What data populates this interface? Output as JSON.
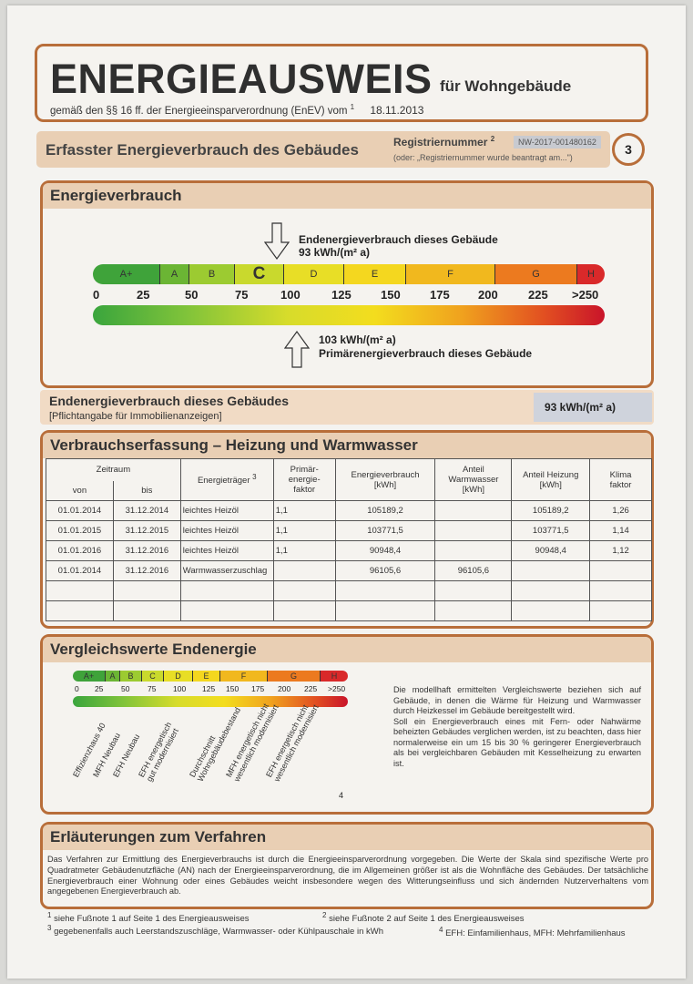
{
  "header": {
    "title": "ENERGIEAUSWEIS",
    "subtitle": "für Wohngebäude",
    "enev_text": "gemäß den §§ 16 ff. der Energieeinsparverordnung (EnEV) vom",
    "enev_sup": "1",
    "date": "18.11.2013"
  },
  "registration": {
    "section_label": "Erfasster Energieverbrauch des Gebäudes",
    "regnr_label": "Registriernummer",
    "regnr_sup": "2",
    "regnr_value": "NW-2017-001480162",
    "regnr_note": "(oder: „Registriernummer wurde beantragt am...\")",
    "page_number": "3"
  },
  "energieverbrauch": {
    "title": "Energieverbrauch",
    "end_label_1": "Endenergieverbrauch dieses Gebäude",
    "end_value": "93 kWh/(m² a)",
    "prim_value": "103 kWh/(m² a)",
    "prim_label": "Primärenergieverbrauch dieses Gebäude",
    "classes": [
      {
        "label": "A+",
        "color": "#3fa33a"
      },
      {
        "label": "A",
        "color": "#6bb534"
      },
      {
        "label": "B",
        "color": "#9ccb31"
      },
      {
        "label": "C",
        "color": "#c9d92d"
      },
      {
        "label": "D",
        "color": "#e8de26"
      },
      {
        "label": "E",
        "color": "#f4d71f"
      },
      {
        "label": "F",
        "color": "#f1b81e"
      },
      {
        "label": "G",
        "color": "#ec7a1f"
      },
      {
        "label": "H",
        "color": "#d9292a"
      }
    ],
    "ticks": [
      "0",
      "25",
      "50",
      "75",
      "100",
      "125",
      "150",
      "175",
      "200",
      "225",
      ">250"
    ],
    "end_value_numeric": 93,
    "prim_value_numeric": 103
  },
  "endenergie_row": {
    "label": "Endenergieverbrauch dieses Gebäudes",
    "note": "[Pflichtangabe für Immobilienanzeigen]",
    "value": "93 kWh/(m² a)"
  },
  "verbrauchserfassung": {
    "title": "Verbrauchserfassung – Heizung und Warmwasser",
    "headers": {
      "zeitraum": "Zeitraum",
      "von": "von",
      "bis": "bis",
      "traeger": "Energieträger",
      "traeger_sup": "3",
      "primaer": "Primär-\nenergie-\nfaktor",
      "verbrauch": "Energieverbrauch\n[kWh]",
      "warmwasser": "Anteil\nWarmwasser\n[kWh]",
      "heizung": "Anteil Heizung\n[kWh]",
      "klima": "Klima\nfaktor"
    },
    "rows": [
      {
        "von": "01.01.2014",
        "bis": "31.12.2014",
        "traeger": "leichtes Heizöl",
        "faktor": "1,1",
        "verbrauch": "105189,2",
        "warmwasser": "",
        "heizung": "105189,2",
        "klima": "1,26"
      },
      {
        "von": "01.01.2015",
        "bis": "31.12.2015",
        "traeger": "leichtes Heizöl",
        "faktor": "1,1",
        "verbrauch": "103771,5",
        "warmwasser": "",
        "heizung": "103771,5",
        "klima": "1,14"
      },
      {
        "von": "01.01.2016",
        "bis": "31.12.2016",
        "traeger": "leichtes Heizöl",
        "faktor": "1,1",
        "verbrauch": "90948,4",
        "warmwasser": "",
        "heizung": "90948,4",
        "klima": "1,12"
      },
      {
        "von": "01.01.2014",
        "bis": "31.12.2016",
        "traeger": "Warmwasserzuschlag",
        "faktor": "",
        "verbrauch": "96105,6",
        "warmwasser": "96105,6",
        "heizung": "",
        "klima": ""
      },
      {
        "von": "",
        "bis": "",
        "traeger": "",
        "faktor": "",
        "verbrauch": "",
        "warmwasser": "",
        "heizung": "",
        "klima": ""
      },
      {
        "von": "",
        "bis": "",
        "traeger": "",
        "faktor": "",
        "verbrauch": "",
        "warmwasser": "",
        "heizung": "",
        "klima": ""
      }
    ]
  },
  "vergleich": {
    "title": "Vergleichswerte Endenergie",
    "classes": [
      "A+",
      "A",
      "B",
      "C",
      "D",
      "E",
      "F",
      "G",
      "H"
    ],
    "ticks": [
      "0",
      "25",
      "50",
      "75",
      "100",
      "125",
      "150",
      "175",
      "200",
      "225",
      ">250"
    ],
    "buildings": [
      "Effizienzhaus 40",
      "MFH Neubau",
      "EFH Neubau",
      "EFH energetisch\ngut modernisiert",
      "Durchschnitt\nWohngebäudebestand",
      "MFH energetisch nicht\nwesentlich modernisiert",
      "EFH energetisch nicht\nwesentlich modernisiert"
    ],
    "footnote_marker": "4",
    "text": "Die modellhaft ermittelten Vergleichswerte beziehen sich auf Gebäude, in denen die Wärme für Heizung und Warmwasser durch Heizkessel im Gebäude bereitgestellt wird.\nSoll ein Energieverbrauch eines mit Fern- oder Nahwärme beheizten Gebäudes verglichen werden, ist zu beachten, dass hier normalerweise ein um 15 bis 30 % geringerer Energieverbrauch als bei vergleichbaren Gebäuden mit Kesselheizung zu erwarten ist."
  },
  "erlaeuterungen": {
    "title": "Erläuterungen zum Verfahren",
    "text": "Das Verfahren zur Ermittlung des Energieverbrauchs ist durch die Energieeinsparverordnung vorgegeben. Die Werte der Skala sind spezifische Werte pro Quadratmeter Gebäudenutzfläche (AN) nach der Energieeinsparverordnung, die im Allgemeinen größer ist als die Wohnfläche des Gebäudes. Der tatsächliche Energieverbrauch einer Wohnung oder eines Gebäudes weicht insbesondere wegen des Witterungseinfluss und sich ändernden Nutzerverhaltens vom angegebenen Energieverbrauch ab."
  },
  "footnotes": {
    "f1": "siehe Fußnote 1 auf Seite 1 des Energieausweises",
    "f2": "siehe Fußnote 2 auf Seite 1 des Energieausweises",
    "f3": "gegebenenfalls auch Leerstandszuschläge, Warmwasser- oder Kühlpauschale in kWh",
    "f4": "EFH: Einfamilienhaus, MFH: Mehrfamilienhaus",
    "n1": "1",
    "n2": "2",
    "n3": "3",
    "n4": "4"
  }
}
